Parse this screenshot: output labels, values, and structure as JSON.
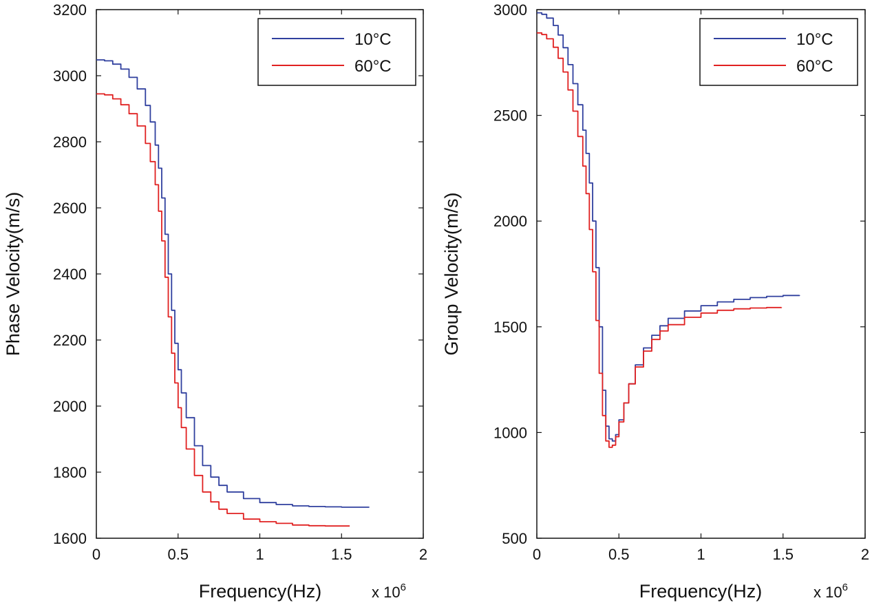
{
  "colors": {
    "series_10c": "#2f3f9e",
    "series_60c": "#e02020",
    "axis": "#111111",
    "background": "#ffffff"
  },
  "chart_data": [
    {
      "type": "line",
      "xlabel": "Frequency(Hz)",
      "ylabel": "Phase Velocity(m/s)",
      "x_exponent_label": "x 10",
      "x_exponent_power": "6",
      "xlim": [
        0,
        2
      ],
      "ylim": [
        1600,
        3200
      ],
      "xticks": [
        0,
        0.5,
        1,
        1.5,
        2
      ],
      "xtick_labels": [
        "0",
        "0.5",
        "1",
        "1.5",
        "2"
      ],
      "yticks": [
        1600,
        1800,
        2000,
        2200,
        2400,
        2600,
        2800,
        3000,
        3200
      ],
      "ytick_labels": [
        "1600",
        "1800",
        "2000",
        "2200",
        "2400",
        "2600",
        "2800",
        "3000",
        "3200"
      ],
      "legend": [
        "10°C",
        "60°C"
      ],
      "legend_position": "top-right",
      "series": [
        {
          "name": "10°C",
          "color": "#2f3f9e",
          "x": [
            0,
            0.05,
            0.1,
            0.15,
            0.2,
            0.25,
            0.3,
            0.33,
            0.36,
            0.38,
            0.4,
            0.42,
            0.44,
            0.46,
            0.48,
            0.5,
            0.52,
            0.55,
            0.6,
            0.65,
            0.7,
            0.75,
            0.8,
            0.9,
            1.0,
            1.1,
            1.2,
            1.3,
            1.4,
            1.5,
            1.6,
            1.67
          ],
          "y": [
            3048,
            3045,
            3035,
            3020,
            2995,
            2960,
            2910,
            2860,
            2790,
            2720,
            2630,
            2520,
            2400,
            2290,
            2190,
            2110,
            2040,
            1965,
            1880,
            1820,
            1785,
            1760,
            1740,
            1720,
            1708,
            1702,
            1698,
            1696,
            1695,
            1694,
            1694,
            1694
          ]
        },
        {
          "name": "60°C",
          "color": "#e02020",
          "x": [
            0,
            0.05,
            0.1,
            0.15,
            0.2,
            0.25,
            0.3,
            0.33,
            0.36,
            0.38,
            0.4,
            0.42,
            0.44,
            0.46,
            0.48,
            0.5,
            0.52,
            0.55,
            0.6,
            0.65,
            0.7,
            0.75,
            0.8,
            0.9,
            1.0,
            1.1,
            1.2,
            1.3,
            1.4,
            1.5,
            1.55
          ],
          "y": [
            2945,
            2942,
            2930,
            2912,
            2885,
            2848,
            2795,
            2740,
            2670,
            2590,
            2500,
            2390,
            2270,
            2160,
            2070,
            1995,
            1935,
            1870,
            1790,
            1740,
            1710,
            1688,
            1675,
            1658,
            1650,
            1645,
            1640,
            1638,
            1637,
            1637,
            1637
          ]
        }
      ]
    },
    {
      "type": "line",
      "xlabel": "Frequency(Hz)",
      "ylabel": "Group Velocity(m/s)",
      "x_exponent_label": "x 10",
      "x_exponent_power": "6",
      "xlim": [
        0,
        2
      ],
      "ylim": [
        500,
        3000
      ],
      "xticks": [
        0,
        0.5,
        1,
        1.5,
        2
      ],
      "xtick_labels": [
        "0",
        "0.5",
        "1",
        "1.5",
        "2"
      ],
      "yticks": [
        500,
        1000,
        1500,
        2000,
        2500,
        3000
      ],
      "ytick_labels": [
        "500",
        "1000",
        "1500",
        "2000",
        "2500",
        "3000"
      ],
      "legend": [
        "10°C",
        "60°C"
      ],
      "legend_position": "top-right",
      "series": [
        {
          "name": "10°C",
          "color": "#2f3f9e",
          "x": [
            0,
            0.03,
            0.06,
            0.1,
            0.13,
            0.16,
            0.19,
            0.22,
            0.25,
            0.28,
            0.3,
            0.32,
            0.34,
            0.36,
            0.38,
            0.4,
            0.42,
            0.44,
            0.46,
            0.48,
            0.5,
            0.53,
            0.56,
            0.6,
            0.65,
            0.7,
            0.75,
            0.8,
            0.9,
            1.0,
            1.1,
            1.2,
            1.3,
            1.4,
            1.5,
            1.6
          ],
          "y": [
            2985,
            2978,
            2960,
            2925,
            2880,
            2820,
            2740,
            2650,
            2550,
            2430,
            2320,
            2180,
            2000,
            1780,
            1500,
            1200,
            1030,
            970,
            960,
            990,
            1060,
            1140,
            1230,
            1320,
            1400,
            1460,
            1505,
            1540,
            1575,
            1600,
            1618,
            1630,
            1638,
            1644,
            1648,
            1650
          ]
        },
        {
          "name": "60°C",
          "color": "#e02020",
          "x": [
            0,
            0.03,
            0.06,
            0.1,
            0.13,
            0.16,
            0.19,
            0.22,
            0.25,
            0.28,
            0.3,
            0.32,
            0.34,
            0.36,
            0.38,
            0.4,
            0.42,
            0.44,
            0.46,
            0.48,
            0.5,
            0.53,
            0.56,
            0.6,
            0.65,
            0.7,
            0.75,
            0.8,
            0.9,
            1.0,
            1.1,
            1.2,
            1.3,
            1.4,
            1.49
          ],
          "y": [
            2890,
            2882,
            2862,
            2822,
            2770,
            2705,
            2620,
            2520,
            2400,
            2260,
            2130,
            1960,
            1760,
            1530,
            1280,
            1080,
            960,
            930,
            940,
            980,
            1050,
            1140,
            1230,
            1310,
            1385,
            1440,
            1480,
            1510,
            1545,
            1565,
            1578,
            1585,
            1589,
            1591,
            1592
          ]
        }
      ]
    }
  ]
}
